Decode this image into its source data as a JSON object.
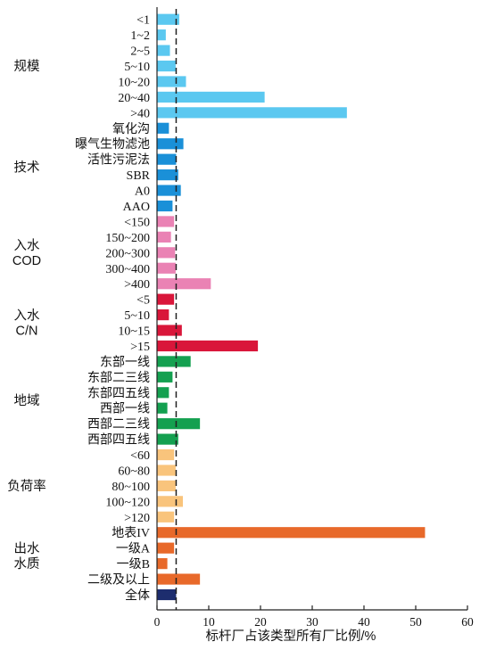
{
  "chart_data": {
    "type": "bar",
    "orientation": "horizontal",
    "xlabel": "标杆厂占该类型所有厂比例/%",
    "xlim": [
      0,
      60
    ],
    "xticks": [
      0,
      10,
      20,
      30,
      40,
      50,
      60
    ],
    "reference_line": {
      "value": 3.7,
      "style": "dashed"
    },
    "groups": [
      {
        "label": "规模",
        "color": "#5bc8f0",
        "items": [
          {
            "category": "<1",
            "value": 4.3
          },
          {
            "category": "1~2",
            "value": 1.7
          },
          {
            "category": "2~5",
            "value": 2.5
          },
          {
            "category": "5~10",
            "value": 3.6
          },
          {
            "category": "10~20",
            "value": 5.6
          },
          {
            "category": "20~40",
            "value": 20.8
          },
          {
            "category": ">40",
            "value": 36.7
          }
        ]
      },
      {
        "label": "技术",
        "color": "#1a90d8",
        "items": [
          {
            "category": "氧化沟",
            "value": 2.3
          },
          {
            "category": "曝气生物滤池",
            "value": 5.1
          },
          {
            "category": "活性污泥法",
            "value": 3.7
          },
          {
            "category": "SBR",
            "value": 4.1
          },
          {
            "category": "A0",
            "value": 4.6
          },
          {
            "category": "AAO",
            "value": 3.0
          }
        ]
      },
      {
        "label": "入水\nCOD",
        "color": "#ea82b4",
        "items": [
          {
            "category": "<150",
            "value": 3.3
          },
          {
            "category": "150~200",
            "value": 2.7
          },
          {
            "category": "200~300",
            "value": 3.5
          },
          {
            "category": "300~400",
            "value": 3.6
          },
          {
            "category": ">400",
            "value": 10.4
          }
        ]
      },
      {
        "label": "入水\nC/N",
        "color": "#d9163a",
        "items": [
          {
            "category": "<5",
            "value": 3.3
          },
          {
            "category": "5~10",
            "value": 2.3
          },
          {
            "category": "10~15",
            "value": 4.8
          },
          {
            "category": ">15",
            "value": 19.5
          }
        ]
      },
      {
        "label": "地域",
        "color": "#14a050",
        "items": [
          {
            "category": "东部一线",
            "value": 6.5
          },
          {
            "category": "东部二三线",
            "value": 3.0
          },
          {
            "category": "东部四五线",
            "value": 2.3
          },
          {
            "category": "西部一线",
            "value": 2.0
          },
          {
            "category": "西部二三线",
            "value": 8.3
          },
          {
            "category": "西部四五线",
            "value": 4.1
          }
        ]
      },
      {
        "label": "负荷率",
        "color": "#f9c47c",
        "items": [
          {
            "category": "<60",
            "value": 3.3
          },
          {
            "category": "60~80",
            "value": 3.6
          },
          {
            "category": "80~100",
            "value": 3.6
          },
          {
            "category": "100~120",
            "value": 5.0
          },
          {
            "category": ">120",
            "value": 3.3
          }
        ]
      },
      {
        "label": "出水\n水质",
        "color": "#e8692a",
        "items": [
          {
            "category": "地表IV",
            "value": 51.8
          },
          {
            "category": "一级A",
            "value": 3.3
          },
          {
            "category": "一级B",
            "value": 2.0
          },
          {
            "category": "二级及以上",
            "value": 8.3
          }
        ]
      },
      {
        "label": "",
        "color": "#1d2d6e",
        "items": [
          {
            "category": "全体",
            "value": 3.7
          }
        ]
      }
    ]
  }
}
